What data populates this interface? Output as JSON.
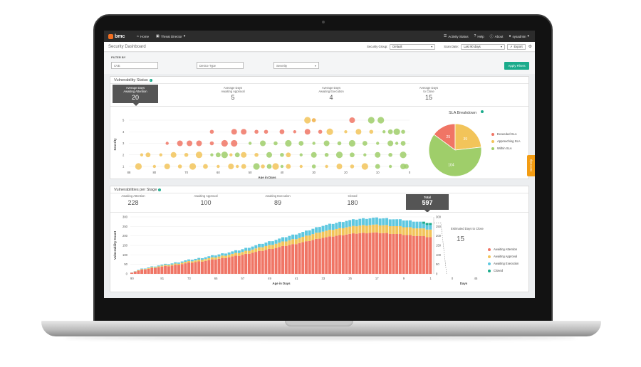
{
  "header": {
    "brand": "bmc",
    "nav": [
      {
        "icon": "home-icon",
        "label": "Home"
      },
      {
        "icon": "briefcase-icon",
        "label": "Threat Director"
      }
    ],
    "right_nav": [
      {
        "icon": "list-icon",
        "label": "Activity Status"
      },
      {
        "icon": "help-icon",
        "label": "Help"
      },
      {
        "icon": "info-icon",
        "label": "About"
      },
      {
        "icon": "user-icon",
        "label": "sysadmin"
      }
    ]
  },
  "titlebar": {
    "title": "Security Dashboard",
    "security_group_label": "Security Group:",
    "security_group_value": "Default",
    "scan_date_label": "Scan Date:",
    "scan_date_value": "Last 90 days",
    "export_label": "Export"
  },
  "filters": {
    "label": "FILTER BY",
    "cve_placeholder": "CVE",
    "device_type_placeholder": "Device Type",
    "severity_label": "Severity",
    "apply_label": "Apply Filters"
  },
  "vulnerability_status": {
    "title": "Vulnerability Status",
    "stats": [
      {
        "label1": "Average Days",
        "label2": "Awaiting Attention",
        "value": "20"
      },
      {
        "label1": "Average Days",
        "label2": "Awaiting Approval",
        "value": "5"
      },
      {
        "label1": "Average Days",
        "label2": "Awaiting Execution",
        "value": "4"
      },
      {
        "label1": "Average Days",
        "label2": "to Close",
        "value": "15"
      }
    ],
    "sla_title": "SLA Breakdown",
    "sla_legend": [
      "Exceeded SLA",
      "Approaching SLA",
      "Within SLA"
    ]
  },
  "stages": {
    "title": "Vulnerabilities per Stage",
    "items": [
      {
        "label": "Awaiting Attention",
        "value": "228"
      },
      {
        "label": "Awaiting Approval",
        "value": "100"
      },
      {
        "label": "Awaiting Execution",
        "value": "89"
      },
      {
        "label": "Closed",
        "value": "180"
      },
      {
        "label": "Total",
        "value": "597"
      }
    ],
    "estimated_label": "Estimated Days to Close",
    "estimated_value": "15",
    "legend": [
      "Awaiting Attention",
      "Awaiting Approval",
      "Awaiting Execution",
      "Closed"
    ]
  },
  "side_tab": "Get Help",
  "colors": {
    "red": "#f07565",
    "orange": "#f2c45a",
    "green": "#9fce6a",
    "blue": "#5ec8e0",
    "teal": "#1aab8b"
  },
  "chart_data": [
    {
      "type": "scatter",
      "title": "",
      "xlabel": "Age in Days",
      "ylabel": "Severity",
      "x_ticks": [
        "88",
        "80",
        "70",
        "60",
        "50",
        "40",
        "30",
        "20",
        "10",
        "0"
      ],
      "y_ticks": [
        "1",
        "2",
        "3",
        "4",
        "5"
      ],
      "xlim": [
        88,
        0
      ],
      "ylim": [
        0.5,
        5.5
      ],
      "series": [
        {
          "color": "red",
          "points": [
            [
              62,
              4
            ],
            [
              55,
              4
            ],
            [
              52,
              4
            ],
            [
              48,
              4
            ],
            [
              45,
              4
            ],
            [
              40,
              4
            ],
            [
              36,
              4
            ],
            [
              32,
              4
            ],
            [
              28,
              4
            ],
            [
              76,
              3
            ],
            [
              72,
              3
            ],
            [
              69,
              3
            ],
            [
              66,
              3
            ],
            [
              62,
              3
            ],
            [
              58,
              3
            ],
            [
              55,
              3
            ],
            [
              30,
              5
            ],
            [
              18,
              5
            ]
          ]
        },
        {
          "color": "orange",
          "points": [
            [
              32,
              5
            ],
            [
              30,
              5
            ],
            [
              25,
              4
            ],
            [
              20,
              4
            ],
            [
              16,
              4
            ],
            [
              12,
              4
            ],
            [
              84,
              2
            ],
            [
              82,
              2
            ],
            [
              78,
              2
            ],
            [
              74,
              2
            ],
            [
              70,
              2
            ],
            [
              66,
              2
            ],
            [
              56,
              2
            ],
            [
              52,
              2
            ],
            [
              48,
              2
            ],
            [
              38,
              2
            ],
            [
              85,
              1
            ],
            [
              80,
              1
            ],
            [
              76,
              1
            ],
            [
              72,
              1
            ],
            [
              68,
              1
            ],
            [
              64,
              1
            ],
            [
              60,
              1
            ],
            [
              56,
              1
            ],
            [
              54,
              1
            ],
            [
              52,
              1
            ],
            [
              46,
              1
            ],
            [
              42,
              1
            ],
            [
              38,
              1
            ],
            [
              34,
              1
            ],
            [
              26,
              1
            ],
            [
              22,
              1
            ],
            [
              18,
              1
            ],
            [
              14,
              1
            ]
          ]
        },
        {
          "color": "green",
          "points": [
            [
              12,
              5
            ],
            [
              9,
              5
            ],
            [
              8,
              4
            ],
            [
              6,
              4
            ],
            [
              4,
              4
            ],
            [
              2,
              4
            ],
            [
              50,
              3
            ],
            [
              46,
              3
            ],
            [
              42,
              3
            ],
            [
              38,
              3
            ],
            [
              34,
              3
            ],
            [
              30,
              3
            ],
            [
              26,
              3
            ],
            [
              22,
              3
            ],
            [
              18,
              3
            ],
            [
              14,
              3
            ],
            [
              10,
              3
            ],
            [
              6,
              3
            ],
            [
              4,
              3
            ],
            [
              2,
              3
            ],
            [
              62,
              2
            ],
            [
              60,
              2
            ],
            [
              58,
              2
            ],
            [
              54,
              2
            ],
            [
              44,
              2
            ],
            [
              40,
              2
            ],
            [
              34,
              2
            ],
            [
              30,
              2
            ],
            [
              26,
              2
            ],
            [
              22,
              2
            ],
            [
              18,
              2
            ],
            [
              14,
              2
            ],
            [
              10,
              2
            ],
            [
              6,
              2
            ],
            [
              2,
              2
            ],
            [
              48,
              1
            ],
            [
              44,
              1
            ],
            [
              40,
              1
            ],
            [
              30,
              1
            ],
            [
              10,
              1
            ],
            [
              6,
              1
            ],
            [
              2,
              1
            ],
            [
              1,
              1
            ]
          ]
        }
      ]
    },
    {
      "type": "pie",
      "title": "SLA Breakdown",
      "labels": [
        "Exceeded SLA",
        "Approaching SLA",
        "Within SLA"
      ],
      "values": [
        25,
        39,
        104
      ]
    },
    {
      "type": "bar",
      "stacked": true,
      "xlabel": "Age in Days",
      "ylabel": "Vulnerability Count",
      "x_ticks": [
        "90",
        "81",
        "73",
        "65",
        "57",
        "49",
        "41",
        "33",
        "25",
        "17",
        "9",
        "1"
      ],
      "y_ticks": [
        "0",
        "50",
        "100",
        "150",
        "200",
        "250",
        "300"
      ],
      "ylim": [
        0,
        300
      ],
      "totals_profile": [
        [
          90,
          10
        ],
        [
          86,
          30
        ],
        [
          82,
          45
        ],
        [
          78,
          55
        ],
        [
          74,
          70
        ],
        [
          70,
          82
        ],
        [
          66,
          95
        ],
        [
          62,
          110
        ],
        [
          58,
          125
        ],
        [
          54,
          145
        ],
        [
          50,
          165
        ],
        [
          46,
          185
        ],
        [
          42,
          205
        ],
        [
          38,
          225
        ],
        [
          34,
          250
        ],
        [
          30,
          265
        ],
        [
          26,
          280
        ],
        [
          22,
          290
        ],
        [
          18,
          295
        ],
        [
          14,
          292
        ],
        [
          10,
          285
        ],
        [
          6,
          278
        ],
        [
          2,
          270
        ],
        [
          1,
          268
        ]
      ],
      "series": [
        {
          "name": "Awaiting Attention",
          "color": "red"
        },
        {
          "name": "Awaiting Approval",
          "color": "orange"
        },
        {
          "name": "Awaiting Execution",
          "color": "blue"
        },
        {
          "name": "Closed",
          "color": "teal"
        }
      ]
    },
    {
      "type": "line",
      "xlabel": "Days",
      "x_ticks": [
        "0",
        "45",
        "90"
      ],
      "y_ticks": [
        "0",
        "50",
        "100",
        "150",
        "200",
        "250",
        "300"
      ]
    }
  ]
}
